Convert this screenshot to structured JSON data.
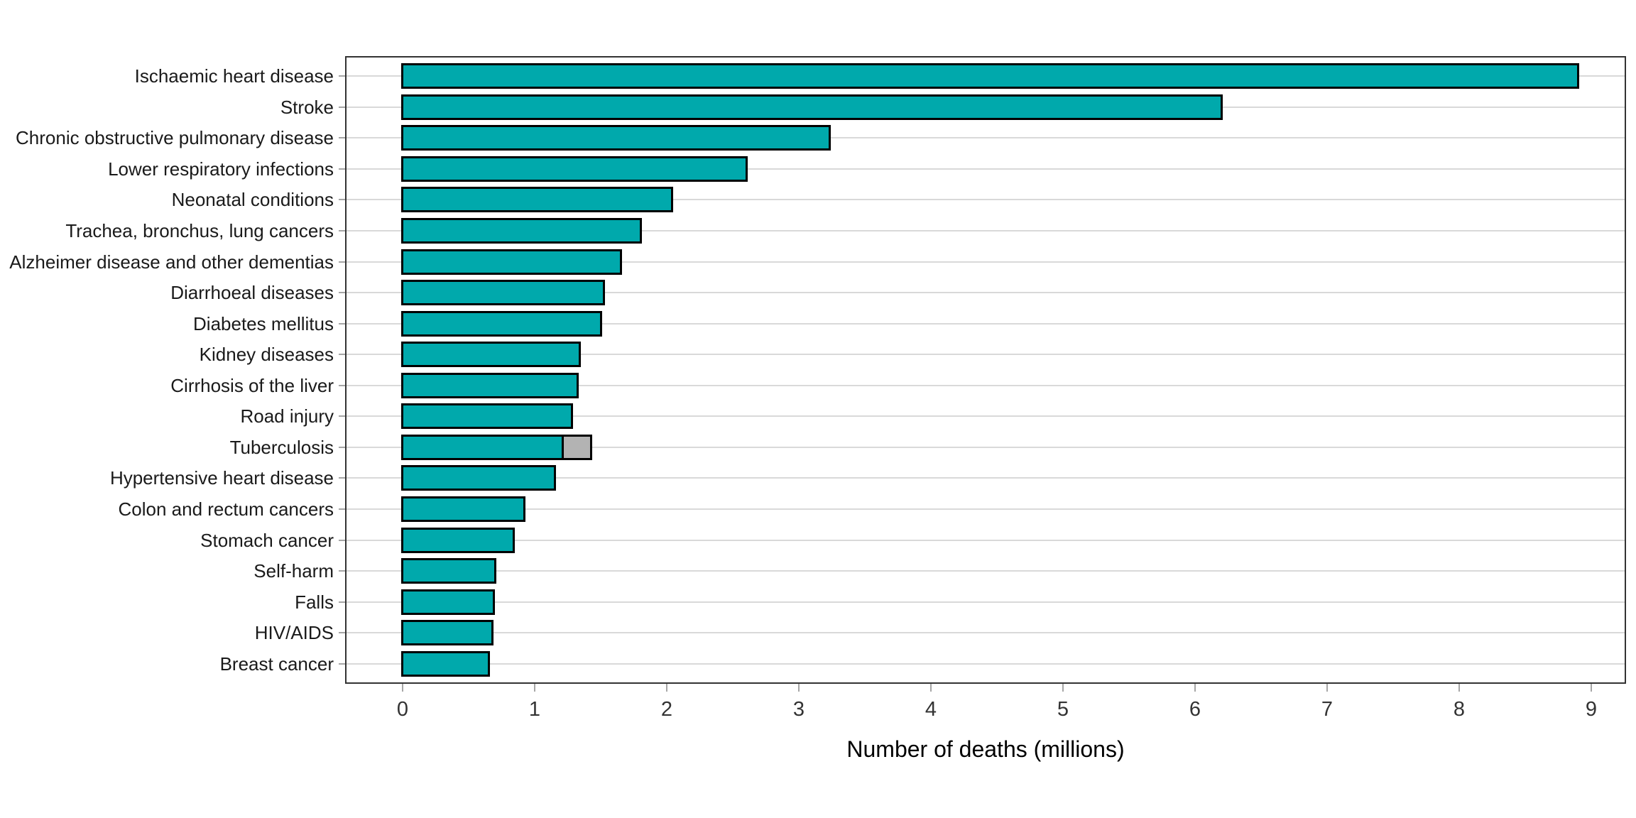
{
  "chart_data": {
    "type": "bar",
    "orientation": "horizontal",
    "title": "",
    "xlabel": "Number of deaths (millions)",
    "ylabel": "",
    "xlim": [
      -0.45,
      9.25
    ],
    "x_ticks": [
      0,
      1,
      2,
      3,
      4,
      5,
      6,
      7,
      8,
      9
    ],
    "grid": "horizontal-category-lines-only",
    "legend": "none",
    "categories": [
      "Ischaemic heart disease",
      "Stroke",
      "Chronic obstructive pulmonary disease",
      "Lower respiratory infections",
      "Neonatal conditions",
      "Trachea, bronchus, lung cancers",
      "Alzheimer disease and other dementias",
      "Diarrhoeal diseases",
      "Diabetes mellitus",
      "Kidney diseases",
      "Cirrhosis of the liver",
      "Road injury",
      "Tuberculosis",
      "Hypertensive heart disease",
      "Colon and rectum cancers",
      "Stomach cancer",
      "Self-harm",
      "Falls",
      "HIV/AIDS",
      "Breast cancer"
    ],
    "values": [
      8.9,
      6.2,
      3.23,
      2.6,
      2.04,
      1.8,
      1.65,
      1.52,
      1.5,
      1.34,
      1.32,
      1.28,
      1.21,
      1.15,
      0.92,
      0.84,
      0.7,
      0.69,
      0.68,
      0.65
    ],
    "secondary_segments": [
      {
        "category": "Tuberculosis",
        "category_index": 12,
        "start": 1.21,
        "end": 1.42
      }
    ],
    "colors": {
      "bar_fill": "#00a9ac",
      "bar_border": "#000000",
      "secondary_fill": "#b3b3b3",
      "gridline": "#d9d9d9",
      "panel_border": "#333333",
      "tick_mark": "#a6a6a6",
      "category_text": "#1a1a1a",
      "tick_text": "#333333",
      "axis_title_text": "#000000"
    }
  }
}
